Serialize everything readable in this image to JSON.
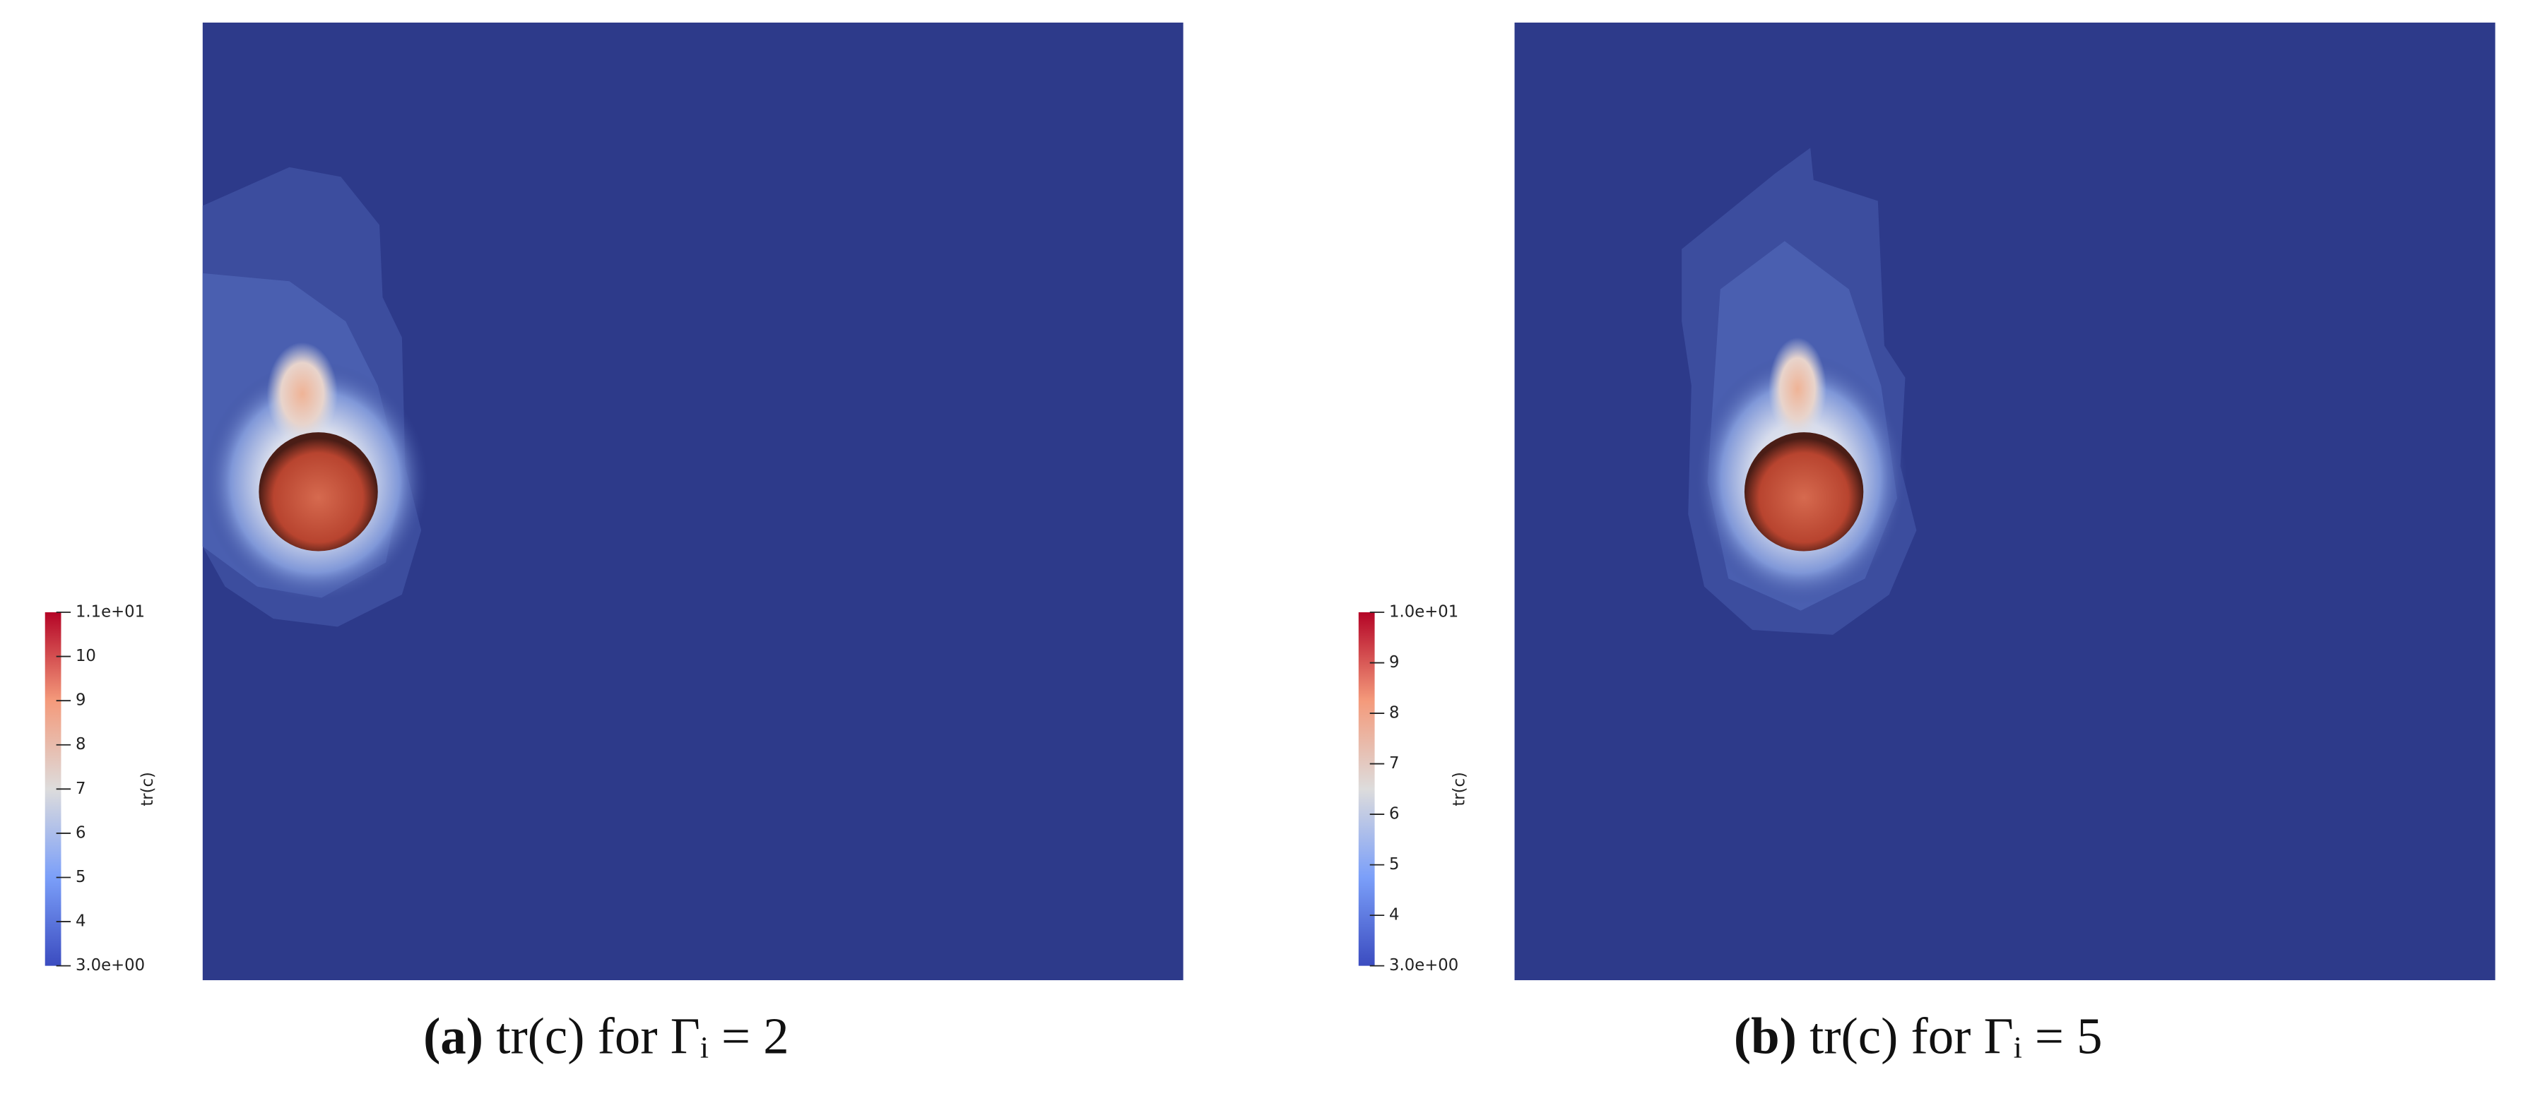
{
  "chart_data": [
    {
      "type": "contour",
      "caption_label": "(a)",
      "caption": "tr(c) for Γᵢ = 2",
      "colorbar": {
        "label": "tr(c)",
        "range": [
          3,
          11
        ],
        "ticks": [
          {
            "value": 11,
            "label": "1.1e+01"
          },
          10,
          9,
          8,
          7,
          6,
          5,
          4,
          {
            "value": 3,
            "label": "3.0e+00"
          }
        ]
      }
    },
    {
      "type": "contour",
      "caption_label": "(b)",
      "caption": "tr(c) for Γᵢ = 5",
      "colorbar": {
        "label": "tr(c)",
        "range": [
          3,
          10
        ],
        "ticks": [
          {
            "value": 10,
            "label": "1.0e+01"
          },
          9,
          8,
          7,
          6,
          5,
          4,
          {
            "value": 3,
            "label": "3.0e+00"
          }
        ]
      }
    }
  ]
}
